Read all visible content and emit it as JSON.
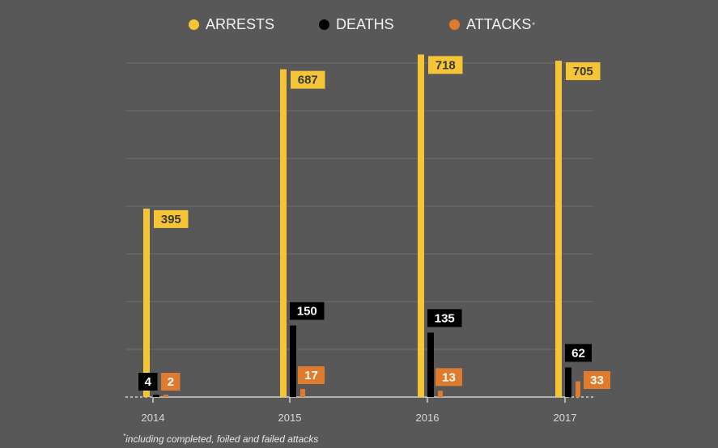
{
  "chart_data": {
    "type": "bar",
    "title": "",
    "xlabel": "",
    "ylabel": "",
    "categories": [
      "2014",
      "2015",
      "2016",
      "2017"
    ],
    "series": [
      {
        "name": "ARRESTS",
        "color": "#f5c536",
        "label_text_color": "#3a3a3a",
        "values": [
          395,
          687,
          718,
          705
        ]
      },
      {
        "name": "DEATHS",
        "color": "#000000",
        "label_text_color": "#ffffff",
        "values": [
          4,
          150,
          135,
          62
        ]
      },
      {
        "name": "ATTACKS",
        "color": "#e07b2e",
        "label_text_color": "#ffffff",
        "values": [
          2,
          17,
          13,
          33
        ]
      }
    ],
    "ylim": [
      0,
      700
    ],
    "grid": true,
    "legend_position": "top",
    "footnote": "including completed, foiled and failed attacks"
  },
  "legend": {
    "items": [
      {
        "label": "ARRESTS",
        "color": "#f5c536",
        "marker": ""
      },
      {
        "label": "DEATHS",
        "color": "#000000",
        "marker": ""
      },
      {
        "label": "ATTACKS",
        "color": "#e07b2e",
        "marker": "*"
      }
    ]
  },
  "footnote": {
    "marker": "*",
    "text": "including completed, foiled and failed attacks"
  }
}
